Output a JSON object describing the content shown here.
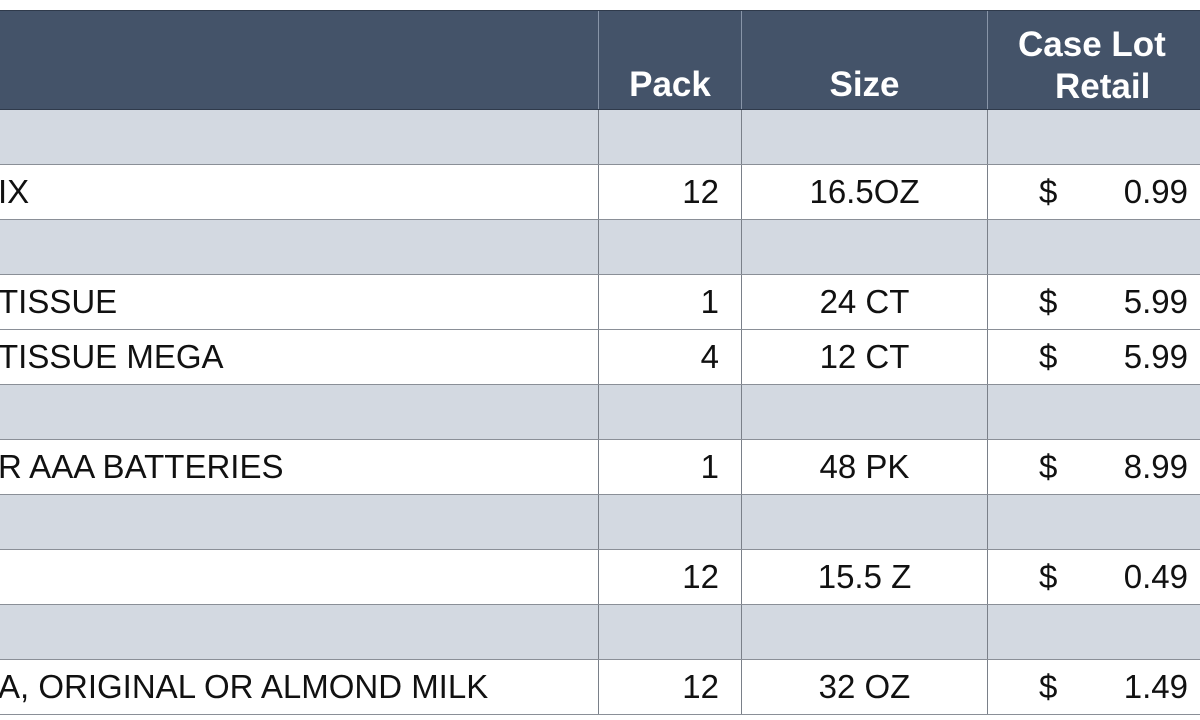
{
  "table": {
    "headers": {
      "pack": "Pack",
      "size": "Size",
      "retail_line1": "Case Lot",
      "retail_line2": "Retail"
    },
    "rows": [
      {
        "type": "band"
      },
      {
        "type": "item",
        "description": "IX",
        "pack": "12",
        "size": "16.5OZ",
        "currency": "$",
        "price": "0.99"
      },
      {
        "type": "band"
      },
      {
        "type": "item",
        "description": "TISSUE",
        "pack": "1",
        "size": "24 CT",
        "currency": "$",
        "price": "5.99"
      },
      {
        "type": "item",
        "description": "TISSUE MEGA",
        "pack": "4",
        "size": "12 CT",
        "currency": "$",
        "price": "5.99"
      },
      {
        "type": "band"
      },
      {
        "type": "item",
        "description": "R AAA BATTERIES",
        "pack": "1",
        "size": "48 PK",
        "currency": "$",
        "price": "8.99"
      },
      {
        "type": "band"
      },
      {
        "type": "item",
        "description": "",
        "pack": "12",
        "size": "15.5 Z",
        "currency": "$",
        "price": "0.49"
      },
      {
        "type": "band"
      },
      {
        "type": "item",
        "description": "A, ORIGINAL OR ALMOND MILK",
        "pack": "12",
        "size": "32 OZ",
        "currency": "$",
        "price": "1.49"
      }
    ]
  },
  "colors": {
    "header_bg": "#445369",
    "band_bg": "#d3d9e1",
    "row_bg": "#ffffff",
    "header_text": "#ffffff"
  }
}
